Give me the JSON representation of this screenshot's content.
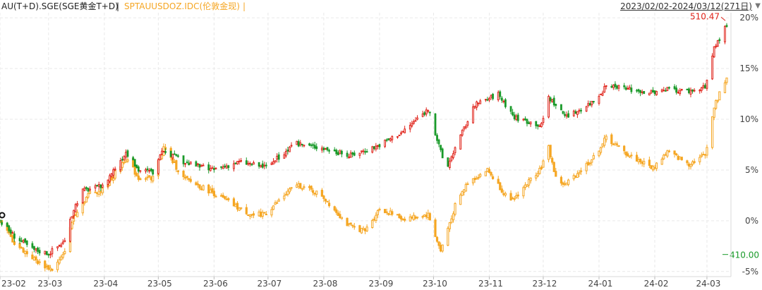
{
  "header": {
    "series1_label": "AU(T+D).SGE(SGE黄金T+D)",
    "separator": "|",
    "series2_label": "SPTAUUSDOZ.IDC(伦敦金现)",
    "separator2": "|",
    "date_range": "2023/02/02-2024/03/12(271日)",
    "dropdown_icon": "triangle-down-icon"
  },
  "colors": {
    "up": "#e0241b",
    "down": "#1a9a2a",
    "series2": "#f5a623",
    "max_label": "#e0241b",
    "min_label": "#1a9a2a"
  },
  "chart_data": {
    "type": "candlestick",
    "ylim": [
      -5.5,
      20.5
    ],
    "y_ticks": [
      "20%",
      "15%",
      "10%",
      "5%",
      "0%",
      "-5%"
    ],
    "x_ticks": [
      "23-02",
      "23-03",
      "23-04",
      "23-05",
      "23-06",
      "23-07",
      "23-08",
      "23-09",
      "23-10",
      "23-11",
      "23-12",
      "24-01",
      "24-02",
      "24-03"
    ],
    "series": [
      {
        "name": "AU(T+D).SGE(SGE黄金T+D)",
        "style": "red-green candlesticks",
        "points": [
          [
            "23-02-02",
            0
          ],
          [
            "23-02-10",
            -1.5
          ],
          [
            "23-02-20",
            -2.8
          ],
          [
            "23-03-01",
            -3.2
          ],
          [
            "23-03-10",
            -2.0
          ],
          [
            "23-03-15",
            1.2
          ],
          [
            "23-03-20",
            3.0
          ],
          [
            "23-03-31",
            3.4
          ],
          [
            "23-04-13",
            6.8
          ],
          [
            "23-04-20",
            5.0
          ],
          [
            "23-04-28",
            4.8
          ],
          [
            "23-05-04",
            7.0
          ],
          [
            "23-05-15",
            5.8
          ],
          [
            "23-05-31",
            5.0
          ],
          [
            "23-06-15",
            5.8
          ],
          [
            "23-06-30",
            5.3
          ],
          [
            "23-07-17",
            7.6
          ],
          [
            "23-07-31",
            7.2
          ],
          [
            "23-08-15",
            6.4
          ],
          [
            "23-08-31",
            7.4
          ],
          [
            "23-09-14",
            8.8
          ],
          [
            "23-09-28",
            11.0
          ],
          [
            "23-10-08",
            5.0
          ],
          [
            "23-10-12",
            6.8
          ],
          [
            "23-10-24",
            11.4
          ],
          [
            "23-11-06",
            12.5
          ],
          [
            "23-11-15",
            10.2
          ],
          [
            "23-11-30",
            9.4
          ],
          [
            "23-12-04",
            12.2
          ],
          [
            "23-12-14",
            10.2
          ],
          [
            "23-12-29",
            11.8
          ],
          [
            "24-01-05",
            13.2
          ],
          [
            "24-01-17",
            13.0
          ],
          [
            "24-01-31",
            12.6
          ],
          [
            "24-02-08",
            12.9
          ],
          [
            "24-02-20",
            12.8
          ],
          [
            "24-02-29",
            13.1
          ],
          [
            "24-03-05",
            17.0
          ],
          [
            "24-03-12",
            19.3
          ]
        ]
      },
      {
        "name": "SPTAUUSDOZ.IDC(伦敦金现)",
        "style": "orange candlesticks",
        "points": [
          [
            "23-02-02",
            0
          ],
          [
            "23-02-10",
            -2.2
          ],
          [
            "23-02-24",
            -4.2
          ],
          [
            "23-03-03",
            -4.8
          ],
          [
            "23-03-09",
            -3.5
          ],
          [
            "23-03-15",
            0.5
          ],
          [
            "23-03-24",
            2.8
          ],
          [
            "23-03-31",
            3.0
          ],
          [
            "23-04-13",
            6.2
          ],
          [
            "23-04-20",
            4.2
          ],
          [
            "23-04-28",
            4.3
          ],
          [
            "23-05-04",
            7.2
          ],
          [
            "23-05-15",
            4.2
          ],
          [
            "23-05-31",
            2.8
          ],
          [
            "23-06-15",
            1.2
          ],
          [
            "23-06-23",
            0.5
          ],
          [
            "23-06-30",
            0.8
          ],
          [
            "23-07-17",
            3.6
          ],
          [
            "23-07-31",
            2.5
          ],
          [
            "23-08-15",
            -0.5
          ],
          [
            "23-08-24",
            -1.0
          ],
          [
            "23-09-01",
            1.2
          ],
          [
            "23-09-14",
            0.2
          ],
          [
            "23-09-28",
            0.6
          ],
          [
            "23-10-05",
            -3.0
          ],
          [
            "23-10-13",
            1.5
          ],
          [
            "23-10-20",
            3.8
          ],
          [
            "23-10-31",
            5.0
          ],
          [
            "23-11-13",
            1.8
          ],
          [
            "23-11-30",
            5.3
          ],
          [
            "23-12-04",
            7.2
          ],
          [
            "23-12-08",
            4.2
          ],
          [
            "23-12-13",
            3.5
          ],
          [
            "23-12-29",
            6.2
          ],
          [
            "24-01-05",
            8.2
          ],
          [
            "24-01-17",
            6.5
          ],
          [
            "24-01-31",
            5.2
          ],
          [
            "24-02-08",
            6.8
          ],
          [
            "24-02-20",
            5.6
          ],
          [
            "24-02-29",
            6.5
          ],
          [
            "24-03-05",
            11.2
          ],
          [
            "24-03-12",
            14.2
          ]
        ]
      }
    ],
    "annotations": [
      {
        "text": "510.47",
        "type": "max",
        "series": 0,
        "date": "24-03-12"
      },
      {
        "text": "410.00",
        "type": "min",
        "series": 0,
        "date": "23-02-25"
      }
    ]
  }
}
